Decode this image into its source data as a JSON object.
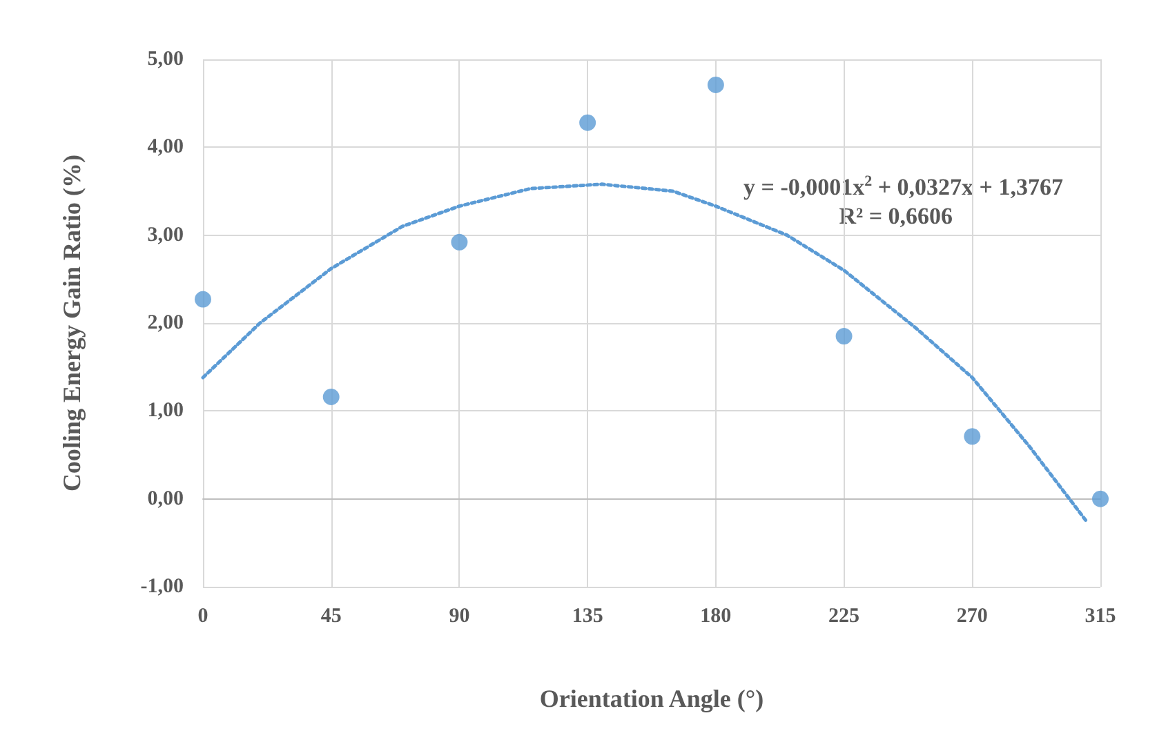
{
  "chart_data": {
    "type": "scatter",
    "xlabel": "Orientation Angle (°)",
    "ylabel": "Cooling Energy Gain Ratio (%)",
    "annotations": [
      "y = -0,0001x$^{2}$ + 0,0327x + 1,3767",
      "R² = 0,6606"
    ],
    "xlim": [
      0,
      315
    ],
    "xticks": [
      0,
      45,
      90,
      135,
      180,
      225,
      270,
      315
    ],
    "ylim": [
      -1,
      5
    ],
    "yticks": [
      {
        "value": -1,
        "label": "-1,00"
      },
      {
        "value": 0,
        "label": "0,00"
      },
      {
        "value": 1,
        "label": "1,00"
      },
      {
        "value": 2,
        "label": "2,00"
      },
      {
        "value": 3,
        "label": "3,00"
      },
      {
        "value": 4,
        "label": "4,00"
      },
      {
        "value": 5,
        "label": "5,00"
      }
    ],
    "grid": true,
    "marker": "circle",
    "series": [
      {
        "color": "#5b9bd5",
        "x": [
          0,
          45,
          90,
          135,
          180,
          225,
          270,
          315
        ],
        "values": [
          2.27,
          1.16,
          2.92,
          4.28,
          4.71,
          1.85,
          0.71,
          0
        ]
      },
      {
        "type": "line",
        "color": "#5b9bd5",
        "marker": "none",
        "line_style": "dotted",
        "x": [
          0,
          20,
          45,
          70,
          90,
          115,
          140,
          165,
          180,
          205,
          225,
          250,
          270,
          290,
          310
        ],
        "values": [
          1.38,
          2.0,
          2.62,
          3.1,
          3.33,
          3.53,
          3.58,
          3.5,
          3.33,
          3.0,
          2.6,
          1.95,
          1.38,
          0.6,
          -0.25
        ]
      }
    ]
  }
}
